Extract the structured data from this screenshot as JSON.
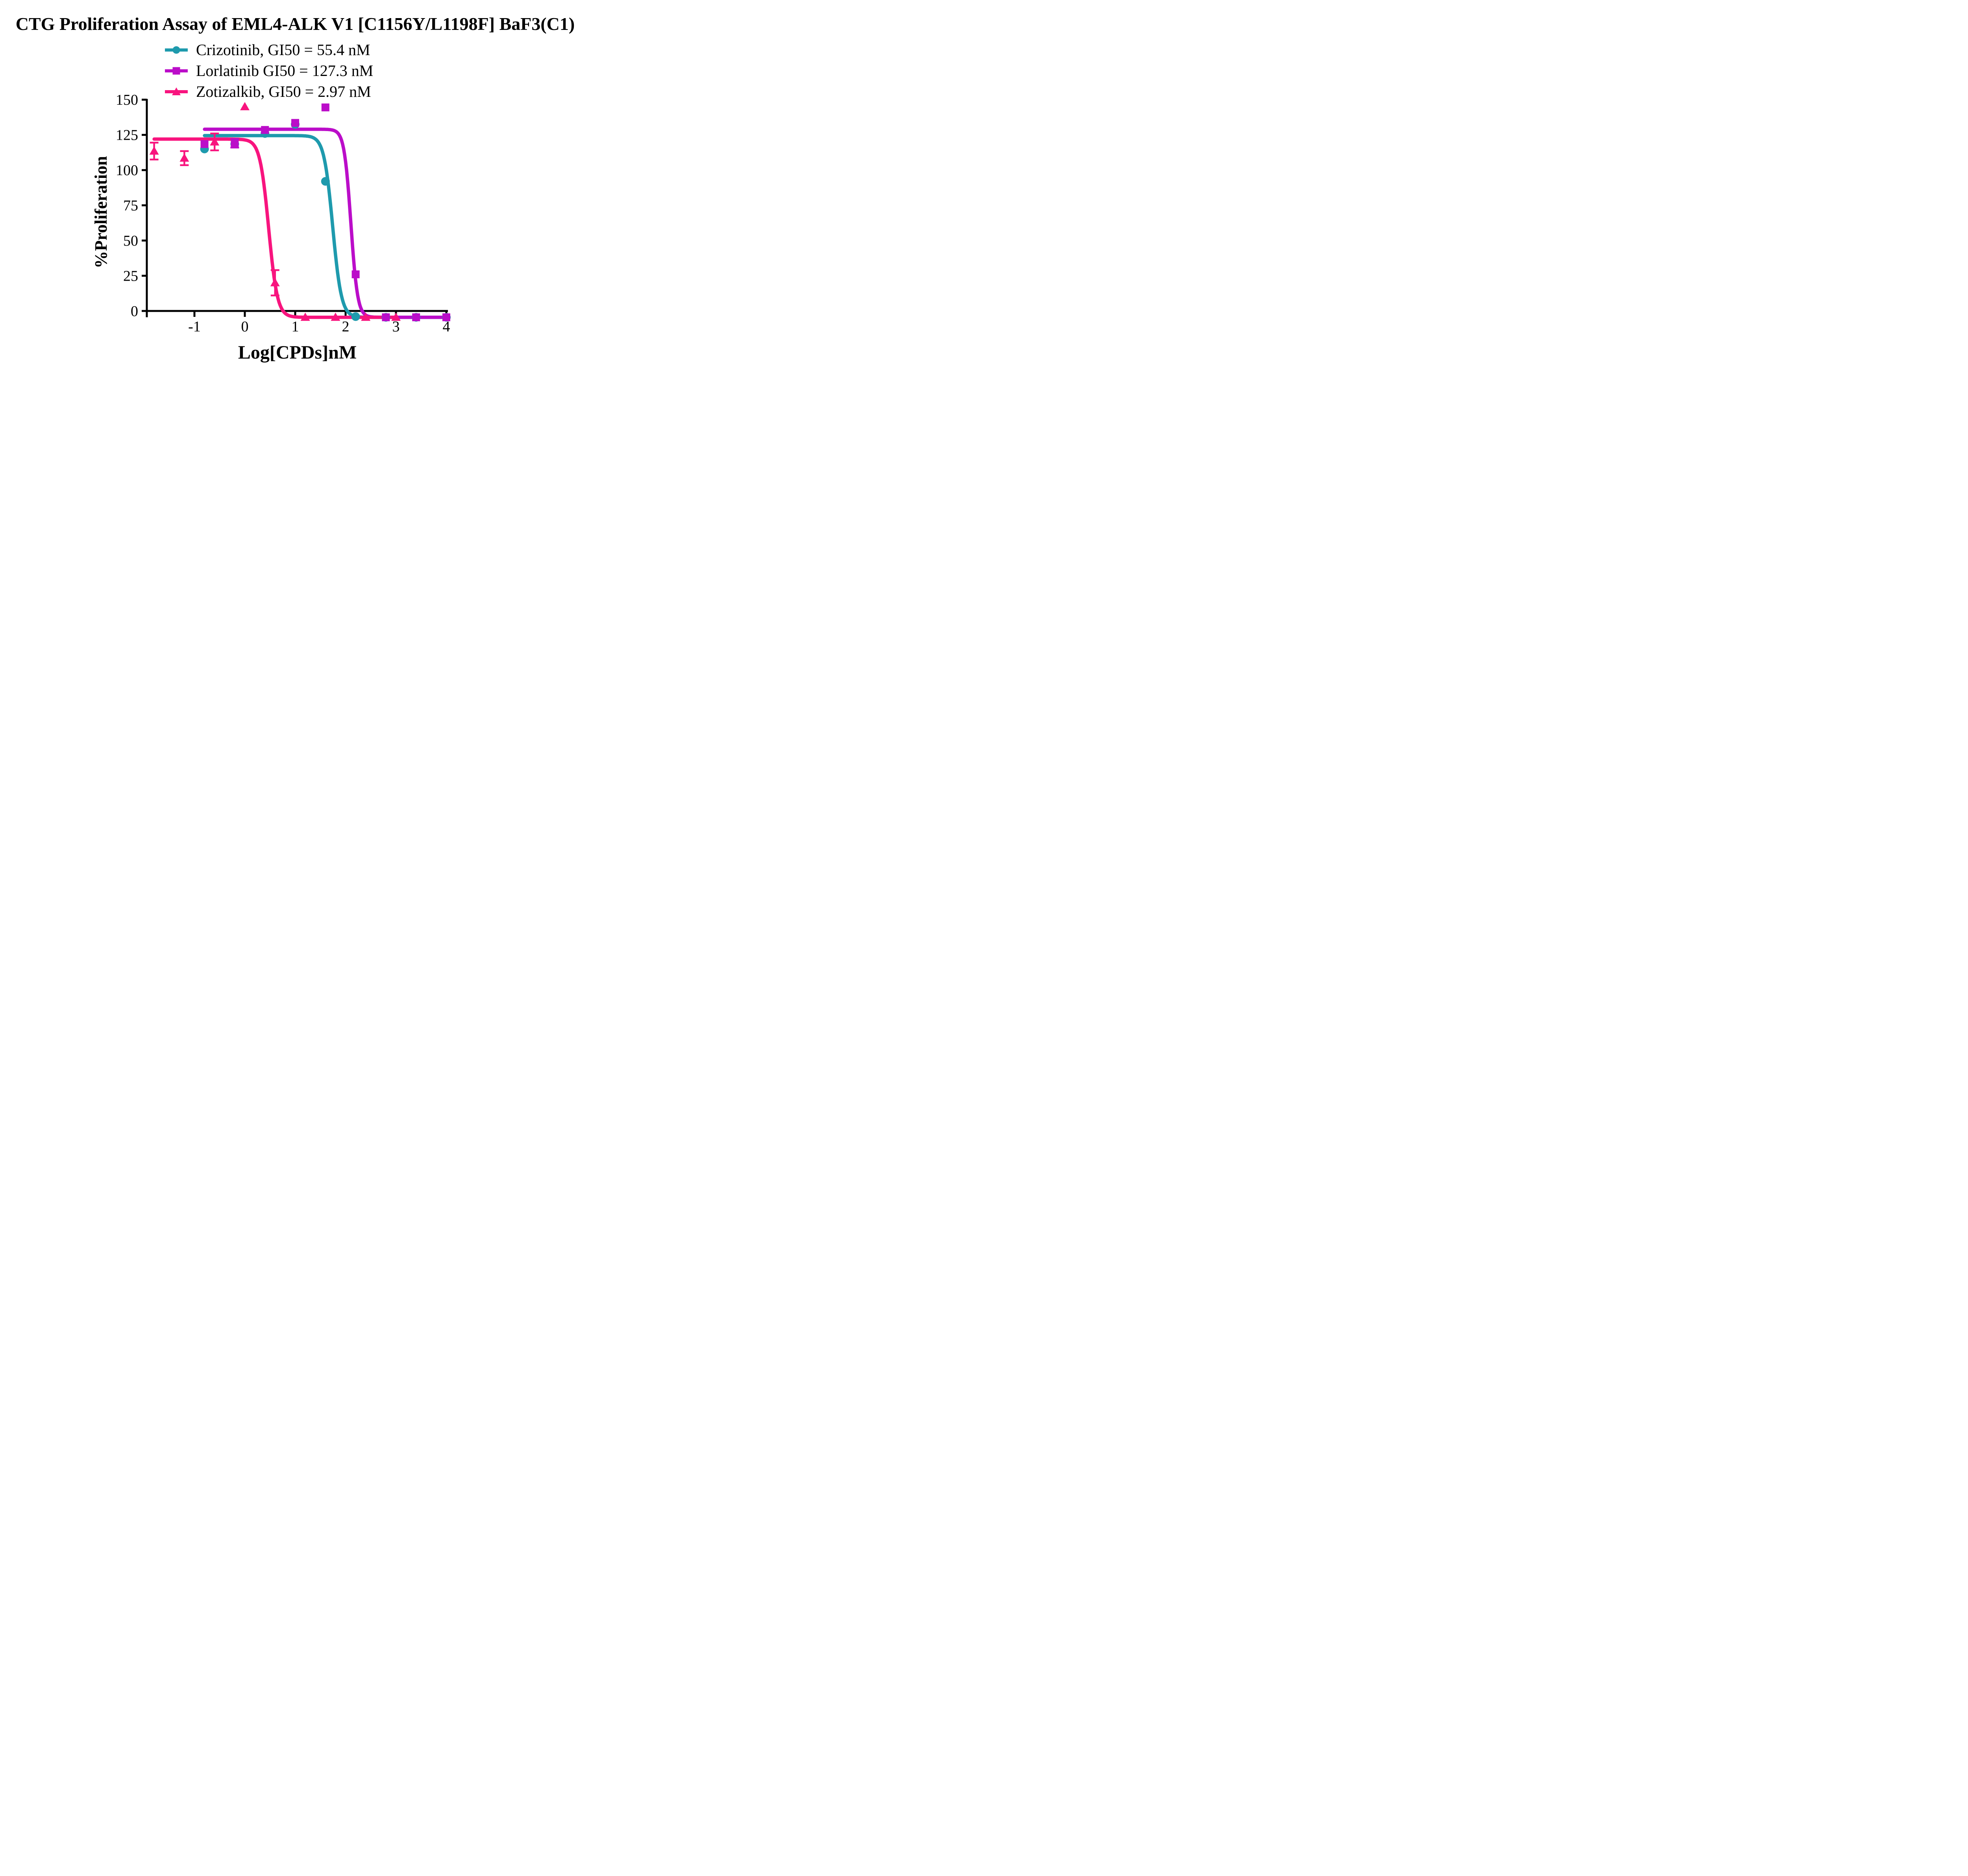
{
  "chart_data": {
    "type": "line",
    "title": "CTG Proliferation Assay of EML4-ALK V1 [C1156Y/L1198F] BaF3(C1)",
    "xlabel": "Log[CPDs]nM",
    "ylabel": "%Proliferation",
    "xlim": [
      -1.95,
      4.0
    ],
    "ylim": [
      0,
      150
    ],
    "xticks": [
      -1,
      0,
      1,
      2,
      3,
      4
    ],
    "yticks": [
      0,
      25,
      50,
      75,
      100,
      125,
      150
    ],
    "grid": false,
    "legend_position": "top-center",
    "axis_color": "#000000",
    "series": [
      {
        "key": "crizotinib",
        "name": "Crizotinib, GI50 = 55.4 nM",
        "drug": "Crizotinib",
        "gi50_nM": 55.4,
        "color": "#1E9AAD",
        "marker": "circle",
        "xrange": [
          -0.8,
          4.0
        ],
        "fit": {
          "top": 124.5,
          "bottom": -4.5,
          "log_gi50": 1.744,
          "hill": 5.0
        },
        "points": [
          {
            "x": -0.8,
            "y": 115
          },
          {
            "x": -0.2,
            "y": 118.5
          },
          {
            "x": 0.4,
            "y": 126
          },
          {
            "x": 1.0,
            "y": 132.5
          },
          {
            "x": 1.6,
            "y": 92
          },
          {
            "x": 2.2,
            "y": -4
          },
          {
            "x": 2.8,
            "y": -4.5
          },
          {
            "x": 3.4,
            "y": -4.5
          },
          {
            "x": 4.0,
            "y": -4.5
          }
        ]
      },
      {
        "key": "zotizalkib",
        "name": "Zotizalkib, GI50 = 2.97 nM",
        "drug": "Zotizalkib",
        "gi50_nM": 2.97,
        "color": "#F8147E",
        "marker": "triangle",
        "xrange": [
          -1.8,
          3.0
        ],
        "fit": {
          "top": 122,
          "bottom": -4.5,
          "log_gi50": 0.473,
          "hill": 5.0
        },
        "points": [
          {
            "x": -1.8,
            "y": 113.5,
            "err": 6
          },
          {
            "x": -1.2,
            "y": 108.5,
            "err": 5
          },
          {
            "x": -0.6,
            "y": 120,
            "err": 6
          },
          {
            "x": 0.0,
            "y": 145
          },
          {
            "x": 0.6,
            "y": 20,
            "err": 9
          },
          {
            "x": 1.2,
            "y": -4.5
          },
          {
            "x": 1.8,
            "y": -4.5
          },
          {
            "x": 2.4,
            "y": -4.5
          },
          {
            "x": 3.0,
            "y": -4.5
          }
        ]
      },
      {
        "key": "lorlatinib",
        "name": "Lorlatinib GI50 = 127.3 nM",
        "drug": "Lorlatinib",
        "gi50_nM": 127.3,
        "color": "#BB0DC9",
        "marker": "square",
        "xrange": [
          -0.8,
          4.0
        ],
        "fit": {
          "top": 129,
          "bottom": -4.5,
          "log_gi50": 2.105,
          "hill": 6.5
        },
        "points": [
          {
            "x": -0.8,
            "y": 118.5
          },
          {
            "x": -0.2,
            "y": 119,
            "err": 3
          },
          {
            "x": 0.4,
            "y": 128.5
          },
          {
            "x": 1.0,
            "y": 133.5
          },
          {
            "x": 1.6,
            "y": 144.5
          },
          {
            "x": 2.2,
            "y": 26
          },
          {
            "x": 2.8,
            "y": -4.5
          },
          {
            "x": 3.4,
            "y": -4.5
          },
          {
            "x": 4.0,
            "y": -4.5
          }
        ]
      }
    ]
  }
}
